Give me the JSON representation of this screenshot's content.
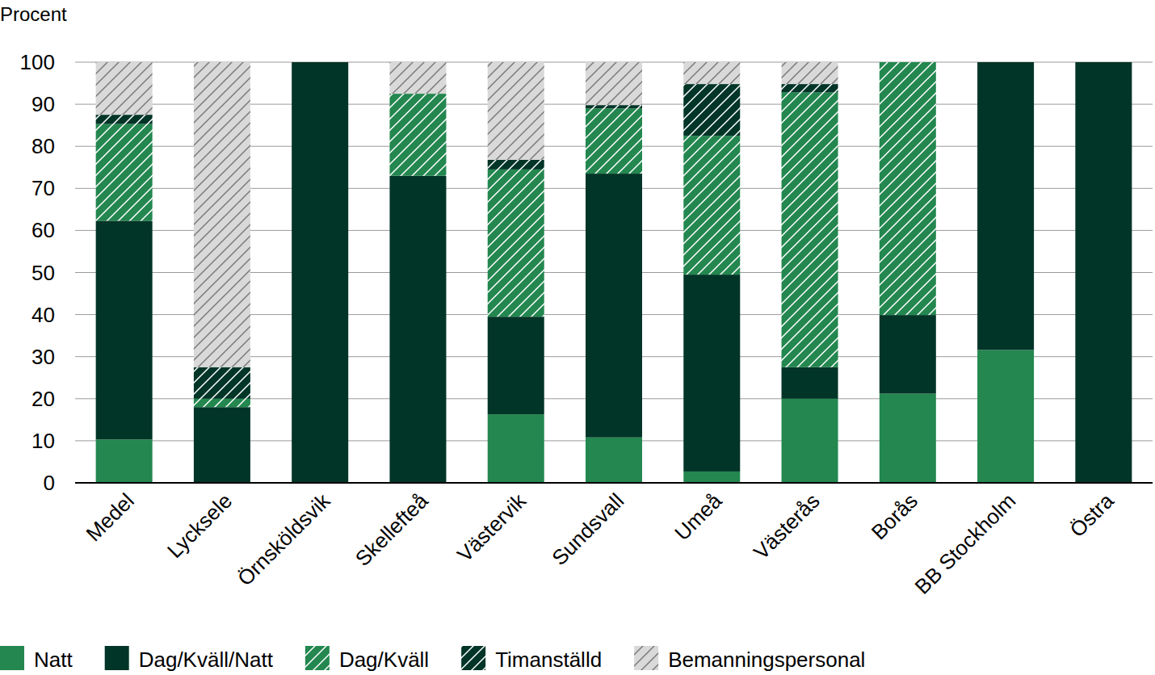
{
  "chart_data": {
    "type": "bar",
    "stacked": true,
    "grid": true,
    "legend": "bottom",
    "y_label": "Procent",
    "categories": [
      "Medel",
      "Lycksele",
      "Örnsköldsvik",
      "Skellefteå",
      "Västervik",
      "Sundsvall",
      "Umeå",
      "Västerås",
      "Borås",
      "BB Stockholm",
      "Östra"
    ],
    "ylim": [
      0,
      100
    ],
    "yticks": [
      0,
      10,
      20,
      30,
      40,
      50,
      60,
      70,
      80,
      90,
      100
    ],
    "series": [
      {
        "name": "Natt",
        "color": "#23874f",
        "line_style": "solid",
        "values": [
          10.3,
          0,
          0,
          0,
          16.3,
          10.8,
          2.7,
          20,
          21.2,
          31.6,
          0
        ]
      },
      {
        "name": "Dag/Kväll/Natt",
        "color": "#003527",
        "line_style": "solid",
        "values": [
          52,
          18,
          100,
          73,
          23.2,
          62.7,
          46.8,
          7.5,
          18.7,
          68.4,
          100
        ]
      },
      {
        "name": "Dag/Kväll",
        "color": "#23874f",
        "line_style": "hatched",
        "values": [
          23,
          2,
          0,
          19.5,
          35,
          15.5,
          33,
          65.3,
          60.1,
          0,
          0
        ]
      },
      {
        "name": "Timanställd",
        "color": "#003527",
        "line_style": "hatched",
        "values": [
          2.2,
          7.5,
          0,
          0,
          2.3,
          0.8,
          12.3,
          2,
          0,
          0,
          0
        ]
      },
      {
        "name": "Bemanningspersonal",
        "color": "#d9d9d9",
        "line_style": "hatched",
        "values": [
          12.5,
          72.5,
          0,
          7.5,
          23.2,
          10.2,
          5.2,
          5.2,
          0,
          0,
          0
        ]
      }
    ]
  }
}
